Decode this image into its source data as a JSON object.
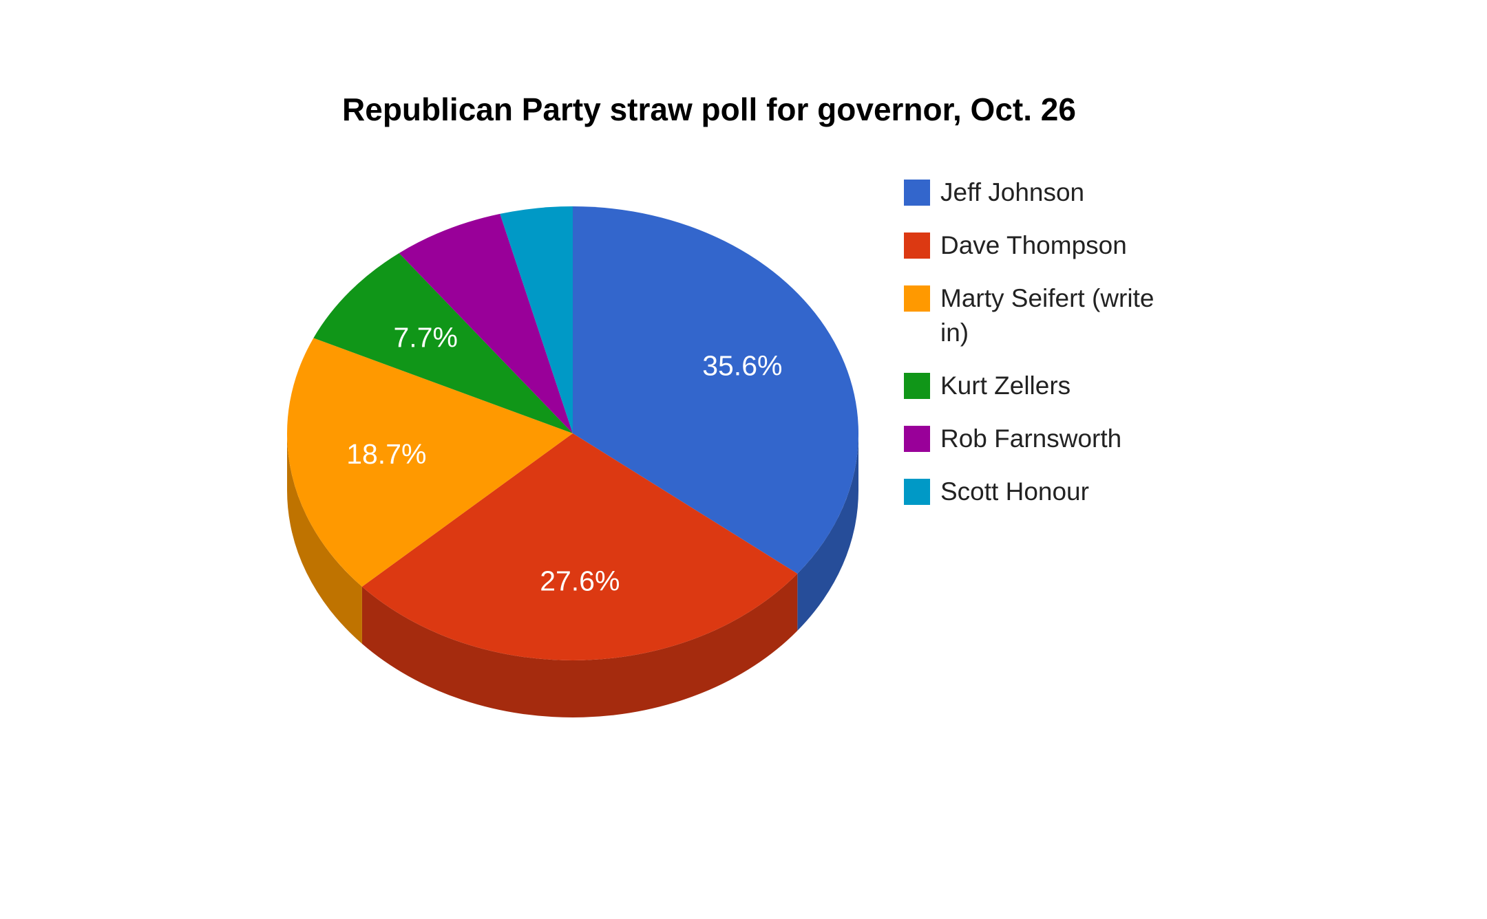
{
  "chart_data": {
    "type": "pie",
    "title": "Republican Party straw poll for governor, Oct. 26",
    "categories": [
      "Jeff Johnson",
      "Dave Thompson",
      "Marty Seifert (write in)",
      "Kurt Zellers",
      "Rob Farnsworth",
      "Scott Honour"
    ],
    "values": [
      35.6,
      27.6,
      18.7,
      7.7,
      6.3,
      4.1
    ],
    "value_labels": [
      "35.6%",
      "27.6%",
      "18.7%",
      "7.7%",
      null,
      null
    ],
    "colors": [
      "#3366cc",
      "#dc3912",
      "#ff9900",
      "#109618",
      "#990099",
      "#0099c6"
    ],
    "legend": "right",
    "three_d": true
  }
}
